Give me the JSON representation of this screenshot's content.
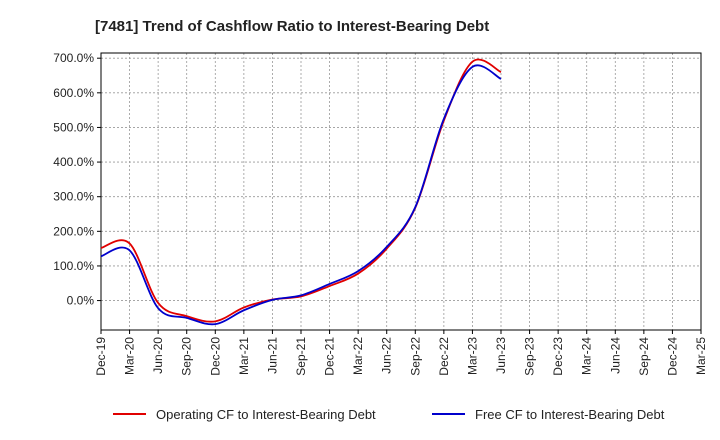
{
  "chart_data": {
    "type": "line",
    "title": "[7481]  Trend of Cashflow Ratio to Interest-Bearing Debt",
    "xlabel": "",
    "ylabel": "",
    "x": [
      "Dec-19",
      "Mar-20",
      "Jun-20",
      "Sep-20",
      "Dec-20",
      "Mar-21",
      "Jun-21",
      "Sep-21",
      "Dec-21",
      "Mar-22",
      "Jun-22",
      "Sep-22",
      "Dec-22",
      "Mar-23",
      "Jun-23",
      "Sep-23",
      "Dec-23",
      "Mar-24",
      "Jun-24",
      "Sep-24",
      "Dec-24",
      "Mar-25"
    ],
    "x_ticks": [
      "Dec-19",
      "Mar-20",
      "Jun-20",
      "Sep-20",
      "Dec-20",
      "Mar-21",
      "Jun-21",
      "Sep-21",
      "Dec-21",
      "Mar-22",
      "Jun-22",
      "Sep-22",
      "Dec-22",
      "Mar-23",
      "Jun-23",
      "Sep-23",
      "Dec-23",
      "Mar-24",
      "Jun-24",
      "Sep-24",
      "Dec-24",
      "Mar-25"
    ],
    "y_ticks": [
      "0.0%",
      "100.0%",
      "200.0%",
      "300.0%",
      "400.0%",
      "500.0%",
      "600.0%",
      "700.0%"
    ],
    "ylim": [
      -85,
      715
    ],
    "y_unit": "%",
    "grid": true,
    "legend_position": "bottom",
    "series": [
      {
        "name": "Operating CF to Interest-Bearing Debt",
        "color": "#e00000",
        "values": [
          152,
          165,
          -7,
          -45,
          -60,
          -20,
          3,
          12,
          42,
          78,
          150,
          268,
          520,
          690,
          660,
          null,
          null,
          null,
          null,
          null,
          null,
          null
        ]
      },
      {
        "name": "Free CF to Interest-Bearing Debt",
        "color": "#0000cc",
        "values": [
          128,
          145,
          -22,
          -50,
          -68,
          -28,
          2,
          15,
          48,
          85,
          155,
          270,
          525,
          675,
          640,
          null,
          null,
          null,
          null,
          null,
          null,
          null
        ]
      }
    ]
  }
}
